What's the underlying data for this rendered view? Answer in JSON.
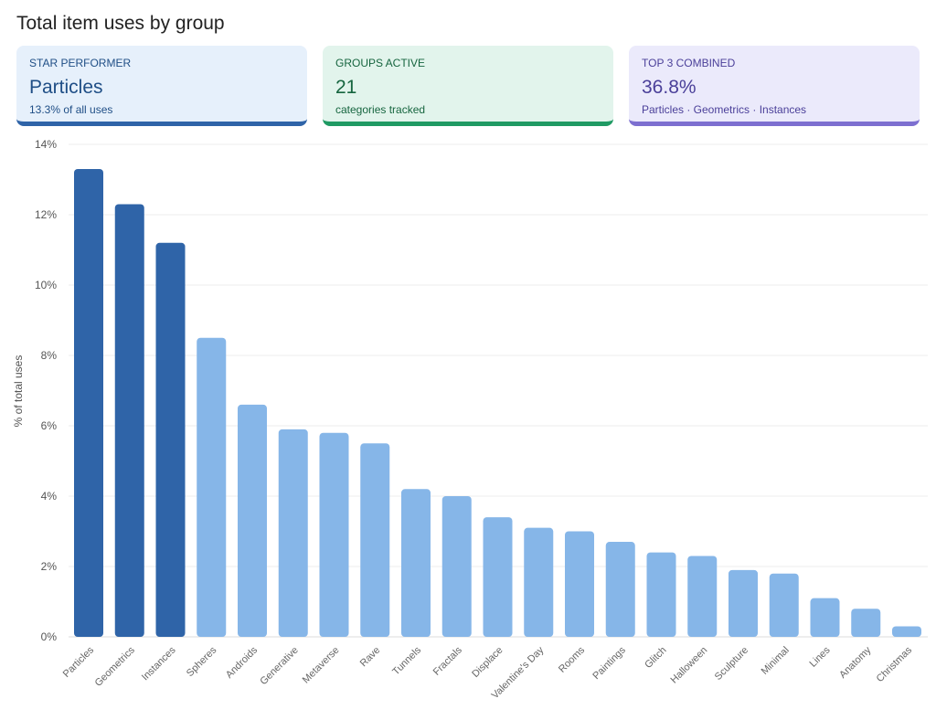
{
  "title": "Total item uses by group",
  "cards": [
    {
      "label": "STAR PERFORMER",
      "value": "Particles",
      "sub": "13.3% of all uses",
      "color": "#2f64a8"
    },
    {
      "label": "GROUPS ACTIVE",
      "value": "21",
      "sub": "categories tracked",
      "color": "#1f9a63"
    },
    {
      "label": "TOP 3 COMBINED",
      "value": "36.8%",
      "sub": "Particles · Geometrics · Instances",
      "color": "#7d6fd0"
    }
  ],
  "chart_data": {
    "type": "bar",
    "title": "",
    "xlabel": "",
    "ylabel": "% of total uses",
    "ylim": [
      0,
      14
    ],
    "yticks": [
      "0%",
      "2%",
      "4%",
      "6%",
      "8%",
      "10%",
      "12%",
      "14%"
    ],
    "grid": true,
    "highlight_color": "#2f64a8",
    "bar_color": "#86b6e8",
    "highlight_count": 3,
    "categories": [
      "Particles",
      "Geometrics",
      "Instances",
      "Spheres",
      "Androids",
      "Generative",
      "Metaverse",
      "Rave",
      "Tunnels",
      "Fractals",
      "Displace",
      "Valentine's Day",
      "Rooms",
      "Paintings",
      "Glitch",
      "Halloween",
      "Sculpture",
      "Minimal",
      "Lines",
      "Anatomy",
      "Christmas"
    ],
    "values": [
      13.3,
      12.3,
      11.2,
      8.5,
      6.6,
      5.9,
      5.8,
      5.5,
      4.2,
      4.0,
      3.4,
      3.1,
      3.0,
      2.7,
      2.4,
      2.3,
      1.9,
      1.8,
      1.1,
      0.8,
      0.3
    ]
  }
}
